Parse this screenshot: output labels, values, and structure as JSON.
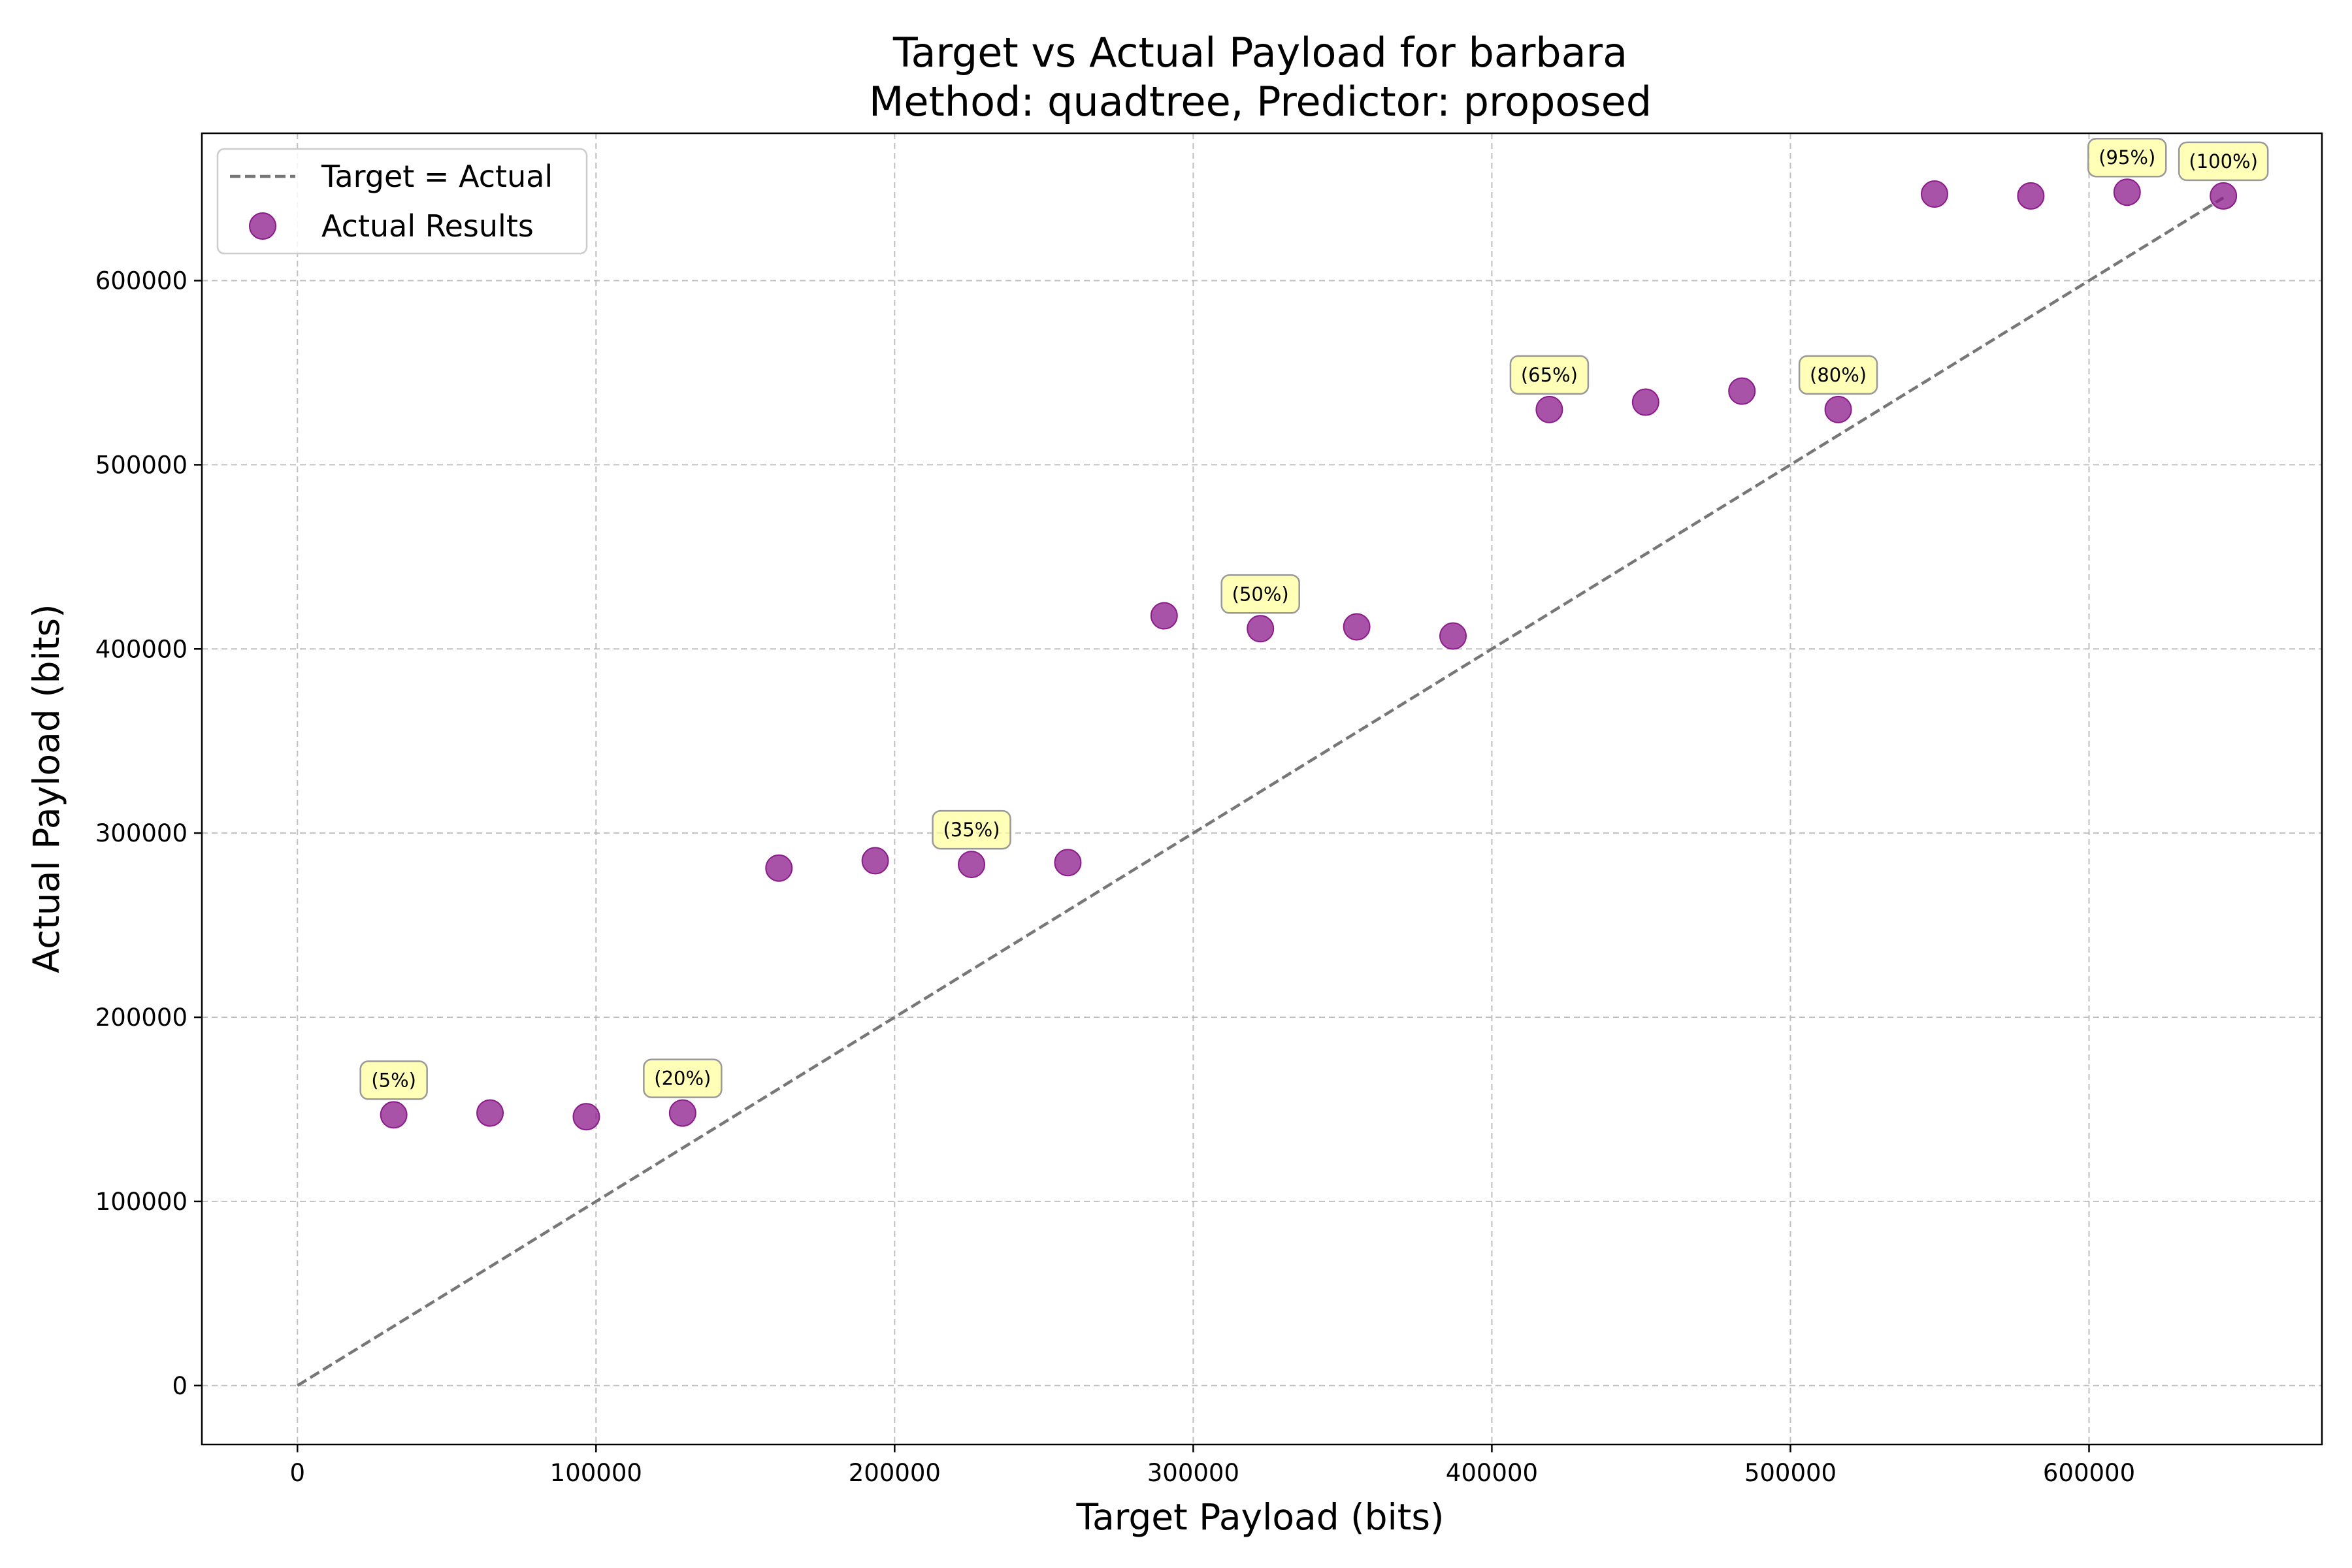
{
  "chart_data": {
    "type": "scatter",
    "title_line1": "Target vs Actual Payload for barbara",
    "title_line2": "Method: quadtree, Predictor: proposed",
    "xlabel": "Target Payload (bits)",
    "ylabel": "Actual Payload (bits)",
    "xlim": [
      -32000,
      678000
    ],
    "ylim": [
      -32000,
      680000
    ],
    "xticks": [
      0,
      100000,
      200000,
      300000,
      400000,
      500000,
      600000
    ],
    "yticks": [
      0,
      100000,
      200000,
      300000,
      400000,
      500000,
      600000
    ],
    "xtick_labels": [
      "0",
      "100000",
      "200000",
      "300000",
      "400000",
      "500000",
      "600000"
    ],
    "ytick_labels": [
      "0",
      "100000",
      "200000",
      "300000",
      "400000",
      "500000",
      "600000"
    ],
    "grid": true,
    "legend_position": "top-left",
    "reference_line": {
      "name": "Target = Actual",
      "x": [
        0,
        645000
      ],
      "y": [
        0,
        645000
      ],
      "color": "#777777",
      "style": "dashed"
    },
    "series": [
      {
        "name": "Actual Results",
        "color": "#8B1A8B",
        "x": [
          32250,
          64500,
          96750,
          129000,
          161250,
          193500,
          225750,
          258000,
          290250,
          322500,
          354750,
          387000,
          419250,
          451500,
          483750,
          516000,
          548250,
          580500,
          612750,
          645000
        ],
        "y": [
          147000,
          148000,
          146000,
          148000,
          281000,
          285000,
          283000,
          284000,
          418000,
          411000,
          412000,
          407000,
          530000,
          534000,
          540000,
          530000,
          647000,
          646000,
          648000,
          646000
        ]
      }
    ],
    "annotations": [
      {
        "text": "(5%)",
        "x": 32250,
        "y": 147000
      },
      {
        "text": "(20%)",
        "x": 129000,
        "y": 148000
      },
      {
        "text": "(35%)",
        "x": 225750,
        "y": 283000
      },
      {
        "text": "(50%)",
        "x": 322500,
        "y": 411000
      },
      {
        "text": "(65%)",
        "x": 419250,
        "y": 530000
      },
      {
        "text": "(80%)",
        "x": 516000,
        "y": 530000
      },
      {
        "text": "(95%)",
        "x": 612750,
        "y": 648000
      },
      {
        "text": "(100%)",
        "x": 645000,
        "y": 646000
      }
    ]
  }
}
